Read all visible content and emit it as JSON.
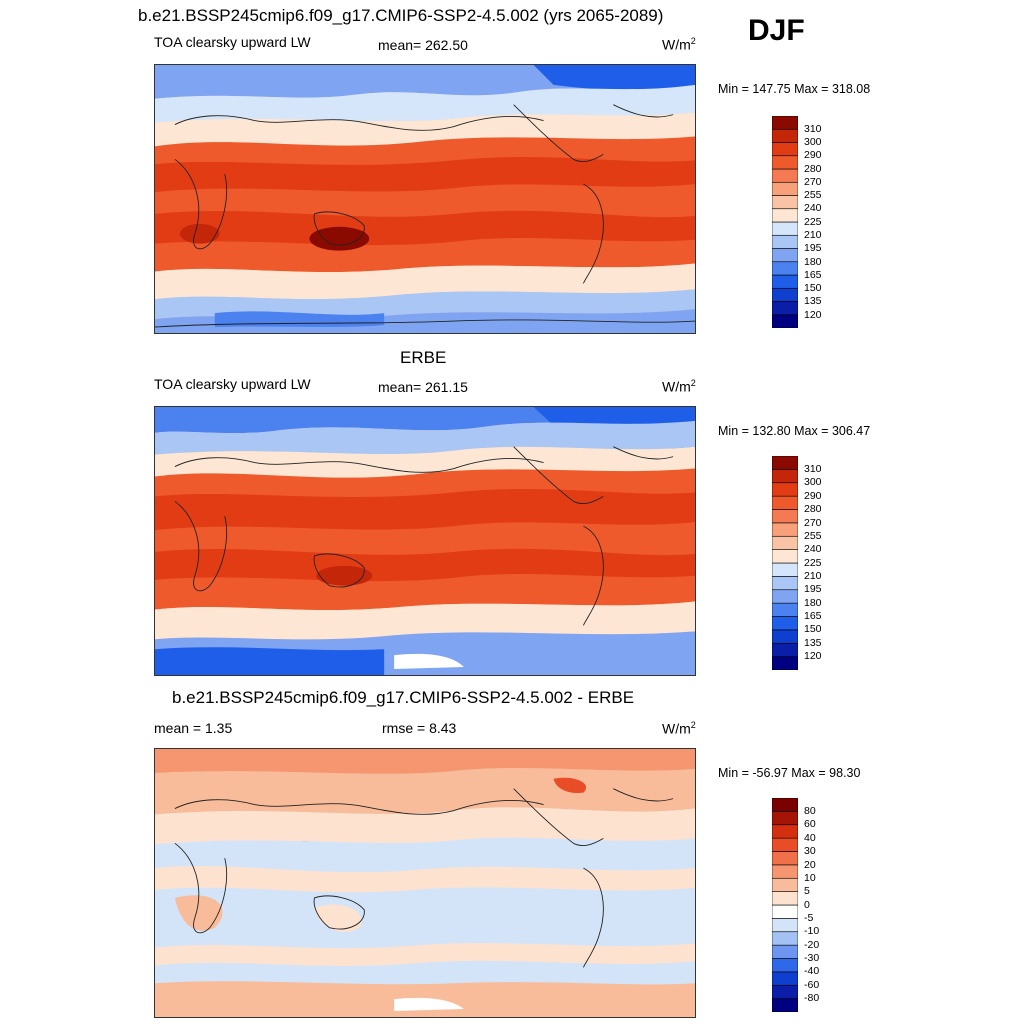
{
  "season": "DJF",
  "panels": [
    {
      "title": "b.e21.BSSP245cmip6.f09_g17.CMIP6-SSP2-4.5.002 (yrs 2065-2089)",
      "left_label": "TOA clearsky upward LW",
      "mean_label": "mean= 262.50",
      "units": "W/m",
      "units_exp": "2",
      "minmax": "Min = 147.75 Max = 318.08",
      "colorbar": {
        "colors": [
          "#000080",
          "#0a1ea8",
          "#0e3fcf",
          "#1f5ee8",
          "#4b82f0",
          "#7fa5f2",
          "#a9c6f5",
          "#d6e6fa",
          "#fde7d4",
          "#f9c4a5",
          "#f7a07a",
          "#f37a52",
          "#ef5a2c",
          "#e23c14",
          "#c4260a",
          "#8a0a00"
        ],
        "labels": [
          "120",
          "135",
          "150",
          "165",
          "180",
          "195",
          "210",
          "225",
          "240",
          "255",
          "270",
          "280",
          "290",
          "300",
          "310"
        ]
      }
    },
    {
      "title": "ERBE",
      "left_label": "TOA clearsky upward LW",
      "mean_label": "mean= 261.15",
      "units": "W/m",
      "units_exp": "2",
      "minmax": "Min = 132.80 Max = 306.47",
      "colorbar": {
        "colors": [
          "#000080",
          "#0a1ea8",
          "#0e3fcf",
          "#1f5ee8",
          "#4b82f0",
          "#7fa5f2",
          "#a9c6f5",
          "#d6e6fa",
          "#fde7d4",
          "#f9c4a5",
          "#f7a07a",
          "#f37a52",
          "#ef5a2c",
          "#e23c14",
          "#c4260a",
          "#8a0a00"
        ],
        "labels": [
          "120",
          "135",
          "150",
          "165",
          "180",
          "195",
          "210",
          "225",
          "240",
          "255",
          "270",
          "280",
          "290",
          "300",
          "310"
        ]
      }
    },
    {
      "title": "b.e21.BSSP245cmip6.f09_g17.CMIP6-SSP2-4.5.002 - ERBE",
      "mean_label": "mean =   1.35",
      "rmse_label": "rmse =   8.43",
      "units": "W/m",
      "units_exp": "2",
      "minmax": "Min = -56.97 Max =  98.30",
      "colorbar": {
        "colors": [
          "#000080",
          "#0a1ea8",
          "#0e3fcf",
          "#2f68e8",
          "#6c96ef",
          "#a3c1f3",
          "#d3e4f8",
          "#ffffff",
          "#fde2d0",
          "#f8bc9b",
          "#f59670",
          "#f0704a",
          "#e94d27",
          "#d43010",
          "#a51505",
          "#7a0000"
        ],
        "labels": [
          "-80",
          "-60",
          "-40",
          "-30",
          "-20",
          "-10",
          "-5",
          "0",
          "5",
          "10",
          "20",
          "30",
          "40",
          "60",
          "80"
        ]
      }
    }
  ]
}
